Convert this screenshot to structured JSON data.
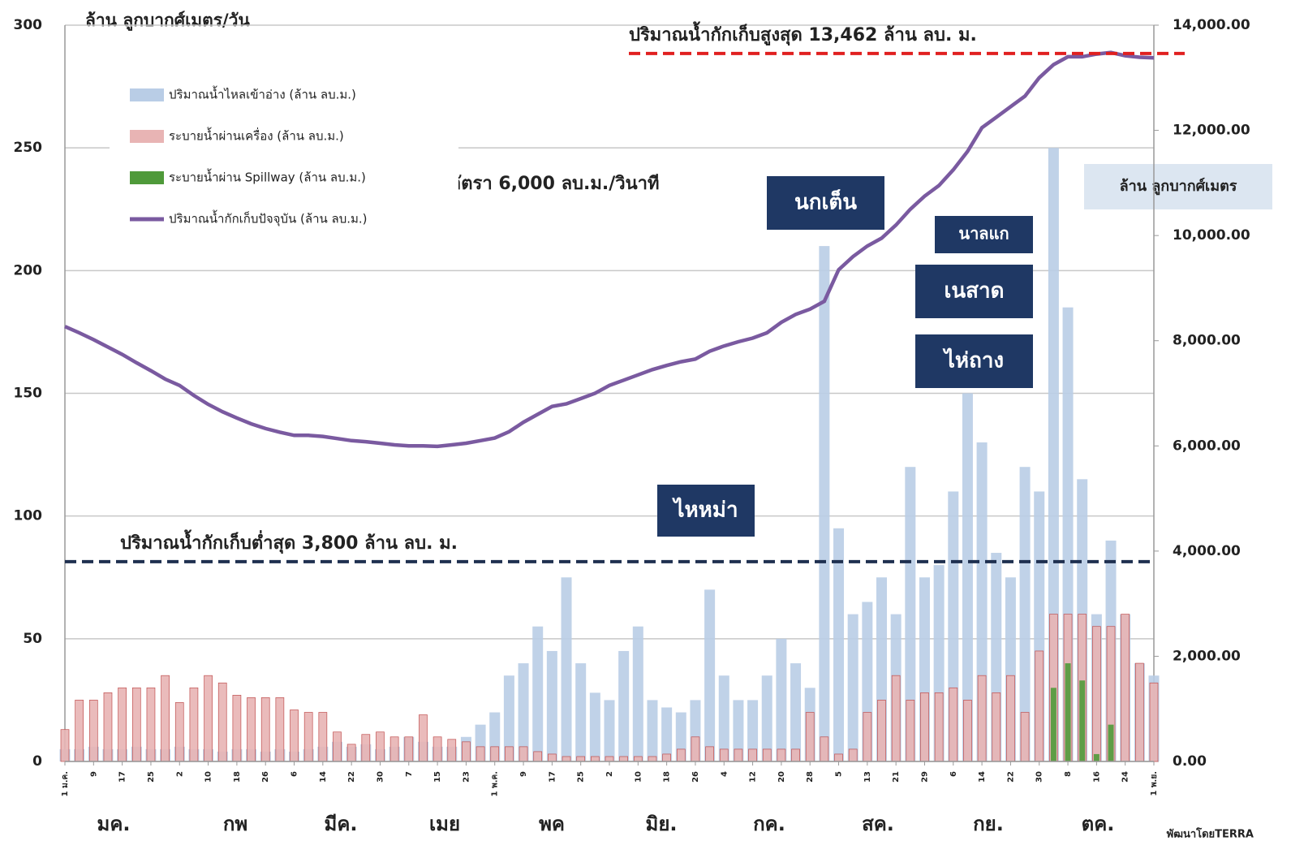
{
  "chart_data": {
    "type": "bar_line",
    "y_axis_label": "ล้าน ลูกบากศ์เมตร/วัน",
    "y2_axis_label": "ล้าน ลูกบากศ์เมตร",
    "credit": "พัฒนาโดยTERRA",
    "categories": [
      "1 ม.ค.",
      null,
      "9",
      null,
      "17",
      null,
      "25",
      null,
      "2",
      null,
      "10",
      null,
      "18",
      null,
      "26",
      null,
      "6",
      null,
      "14",
      null,
      "22",
      null,
      "30",
      null,
      "7",
      null,
      "15",
      null,
      "23",
      null,
      "1 พ.ค.",
      null,
      "9",
      null,
      "17",
      null,
      "25",
      null,
      "2",
      null,
      "10",
      null,
      "18",
      null,
      "26",
      null,
      "4",
      null,
      "12",
      null,
      "20",
      null,
      "28",
      null,
      "5",
      null,
      "13",
      null,
      "21",
      null,
      "29",
      null,
      "6",
      null,
      "14",
      null,
      "22",
      null,
      "30",
      null,
      "8",
      null,
      "16",
      null,
      "24",
      null,
      "1 พ.ย."
    ],
    "month_labels": [
      "มค.",
      "กพ",
      "มีค.",
      "เมย",
      "พค",
      "มิย.",
      "กค.",
      "สค.",
      "กย.",
      "ตค."
    ],
    "ylim": [
      0,
      300
    ],
    "yticks": [
      0,
      50,
      100,
      150,
      200,
      250,
      300
    ],
    "y2lim": [
      0,
      14000
    ],
    "y2ticks": [
      {
        "value": 0,
        "label": "0.00"
      },
      {
        "value": 2000,
        "label": "2,000.00"
      },
      {
        "value": 4000,
        "label": "4,000.00"
      },
      {
        "value": 6000,
        "label": "6,000.00"
      },
      {
        "value": 8000,
        "label": "8,000.00"
      },
      {
        "value": 10000,
        "label": "10,000.00"
      },
      {
        "value": 12000,
        "label": "12,000.00"
      },
      {
        "value": 14000,
        "label": "14,000.00"
      }
    ],
    "grid": true,
    "legend": "upper left",
    "series": [
      {
        "name": "ปริมาณน้ำไหลเข้าอ่าง (ล้าน ลบ.ม.)",
        "type": "bar",
        "color": "#b9cde6",
        "values": [
          5,
          5,
          6,
          5,
          5,
          6,
          5,
          5,
          6,
          5,
          5,
          4,
          5,
          5,
          4,
          5,
          4,
          5,
          6,
          8,
          6,
          7,
          5,
          6,
          10,
          8,
          6,
          6,
          10,
          15,
          20,
          35,
          40,
          55,
          45,
          75,
          40,
          28,
          25,
          45,
          55,
          25,
          22,
          20,
          25,
          70,
          35,
          25,
          25,
          35,
          50,
          40,
          30,
          210,
          95,
          60,
          65,
          75,
          60,
          120,
          75,
          80,
          110,
          150,
          130,
          85,
          75,
          120,
          110,
          250,
          185,
          115,
          60,
          90,
          60,
          40,
          35
        ]
      },
      {
        "name": "ระบายน้ำผ่านเครื่อง (ล้าน ลบ.ม.)",
        "type": "bar",
        "color": "#e8b4b4",
        "values": [
          13,
          25,
          25,
          28,
          30,
          30,
          30,
          35,
          24,
          30,
          35,
          32,
          27,
          26,
          26,
          26,
          21,
          20,
          20,
          12,
          7,
          11,
          12,
          10,
          10,
          19,
          10,
          9,
          8,
          6,
          6,
          6,
          6,
          4,
          3,
          2,
          2,
          2,
          2,
          2,
          2,
          2,
          3,
          5,
          10,
          6,
          5,
          5,
          5,
          5,
          5,
          5,
          20,
          10,
          3,
          5,
          20,
          25,
          35,
          25,
          28,
          28,
          30,
          25,
          35,
          28,
          35,
          20,
          45,
          60,
          60,
          60,
          55,
          55,
          60,
          40,
          32
        ]
      },
      {
        "name": "ระบายน้ำผ่าน Spillway (ล้าน ลบ.ม.)",
        "type": "bar",
        "color": "#4f9a3a",
        "values": [
          0,
          0,
          0,
          0,
          0,
          0,
          0,
          0,
          0,
          0,
          0,
          0,
          0,
          0,
          0,
          0,
          0,
          0,
          0,
          0,
          0,
          0,
          0,
          0,
          0,
          0,
          0,
          0,
          0,
          0,
          0,
          0,
          0,
          0,
          0,
          0,
          0,
          0,
          0,
          0,
          0,
          0,
          0,
          0,
          0,
          0,
          0,
          0,
          0,
          0,
          0,
          0,
          0,
          0,
          0,
          0,
          0,
          0,
          0,
          0,
          0,
          0,
          0,
          0,
          0,
          0,
          0,
          0,
          0,
          30,
          40,
          33,
          3,
          15,
          0,
          0,
          0
        ]
      },
      {
        "name": "ปริมาณน้ำกักเก็บปัจจุบัน (ล้าน ลบ.ม.)",
        "type": "line",
        "axis": "y2",
        "color": "#7a5aa0",
        "values": [
          8270,
          8150,
          8020,
          7880,
          7740,
          7580,
          7430,
          7270,
          7150,
          6960,
          6790,
          6650,
          6530,
          6420,
          6330,
          6260,
          6200,
          6200,
          6180,
          6140,
          6100,
          6080,
          6050,
          6020,
          6000,
          6000,
          5990,
          6020,
          6050,
          6100,
          6150,
          6270,
          6450,
          6600,
          6750,
          6800,
          6900,
          7000,
          7150,
          7250,
          7350,
          7450,
          7530,
          7600,
          7650,
          7800,
          7900,
          7980,
          8050,
          8150,
          8350,
          8500,
          8600,
          8750,
          9350,
          9600,
          9800,
          9950,
          10200,
          10500,
          10750,
          10950,
          11250,
          11600,
          12050,
          12250,
          12450,
          12650,
          13000,
          13250,
          13400,
          13400,
          13450,
          13480,
          13420,
          13390,
          13380
        ]
      }
    ],
    "reference_lines": [
      {
        "label": "ปริมาณน้ำกักเก็บสูงสุด  13,462 ล้าน ลบ. ม.",
        "value": 13462,
        "axis": "y2",
        "color": "#e02020"
      },
      {
        "label": "ปริมาณน้ำกักเก็บต่ำสุด  3,800 ล้าน ลบ. ม.",
        "value": 3800,
        "axis": "y2",
        "color": "#1f3050"
      }
    ],
    "annotations": [
      "อัตรา 6,000 ลบ.ม./วินาที"
    ],
    "storms": [
      "นกเต็น",
      "นาลแก",
      "เนสาด",
      "ไห่ถาง",
      "ไหหม่า"
    ]
  }
}
